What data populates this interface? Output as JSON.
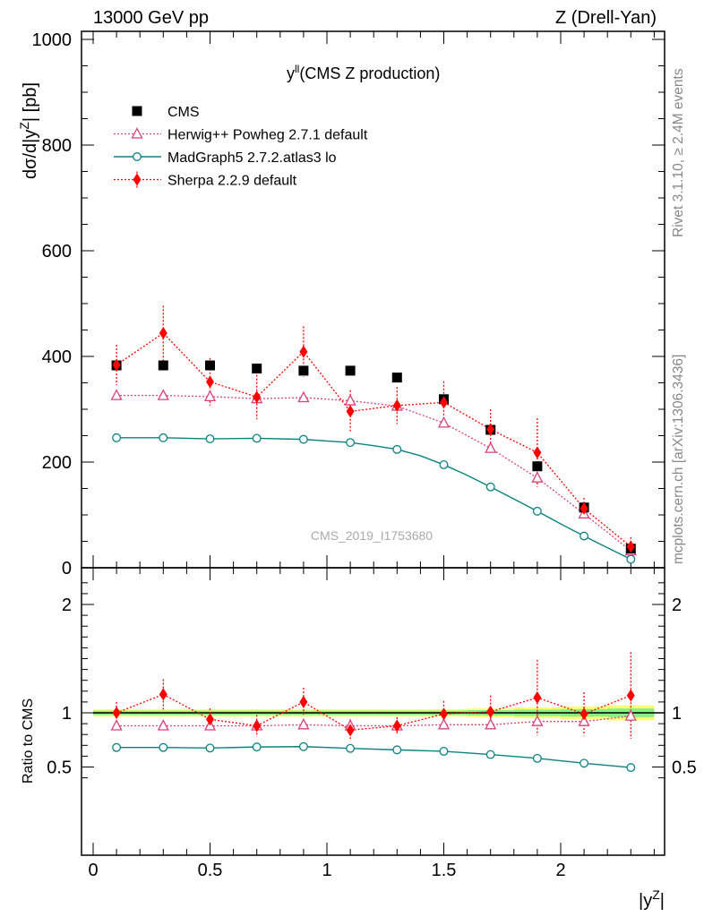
{
  "header": {
    "left": "13000 GeV pp",
    "right": "Z (Drell-Yan)"
  },
  "side_text": {
    "rivet": "Rivet 3.1.10, ≥ 2.4M events",
    "mcplots": "mcplots.cern.ch [arXiv:1306.3436]"
  },
  "chart_data": [
    {
      "type": "scatter",
      "title": "y",
      "title_superscript": "ll",
      "title_suffix": "(CMS Z production)",
      "analysis_label": "CMS_2019_I1753680",
      "xlabel": "|y",
      "xlabel_superscript": "Z",
      "xlabel_suffix": "|",
      "ylabel": "dσ/d|y",
      "ylabel_superscript": "Z",
      "ylabel_suffix": "| [pb]",
      "xlim": [
        -0.05,
        2.45
      ],
      "ylim": [
        0,
        1010
      ],
      "yticks": [
        0,
        200,
        400,
        600,
        800,
        1000
      ],
      "yticklabels": [
        "0",
        "200",
        "400",
        "600",
        "800",
        "1000"
      ],
      "x": [
        0.1,
        0.3,
        0.5,
        0.7,
        0.9,
        1.1,
        1.3,
        1.5,
        1.7,
        1.9,
        2.1,
        2.3
      ],
      "series": [
        {
          "name": "CMS",
          "marker": "square",
          "color": "#000000",
          "values": [
            383,
            383,
            383,
            377,
            373,
            373,
            360,
            319,
            261,
            192,
            114,
            36
          ]
        },
        {
          "name": "Herwig++ Powheg 2.7.1 default",
          "marker": "triangle-open",
          "color": "#d6447a",
          "line": "dotted",
          "values": [
            326,
            326,
            324,
            320,
            322,
            316,
            306,
            274,
            226,
            170,
            102,
            32
          ]
        },
        {
          "name": "MadGraph5 2.7.2.atlas3 lo",
          "marker": "circle-open",
          "color": "#0b8282",
          "line": "solid",
          "values": [
            246,
            246,
            244,
            245,
            243,
            237,
            224,
            195,
            153,
            107,
            60,
            16
          ],
          "dense_line_x": [
            0.1,
            0.3,
            0.5,
            0.7,
            0.9,
            1.0,
            1.1,
            1.2,
            1.3,
            1.4,
            1.5,
            1.6,
            1.7,
            1.8,
            1.9,
            2.0,
            2.1,
            2.2,
            2.3
          ],
          "dense_line_y": [
            246,
            246,
            244,
            245,
            243,
            240,
            237,
            231,
            224,
            212,
            195,
            175,
            153,
            130,
            107,
            83,
            60,
            38,
            16
          ]
        },
        {
          "name": "Sherpa 2.2.9 default",
          "marker": "diamond",
          "color": "#ff0000",
          "line": "dotted",
          "values": [
            384,
            444,
            352,
            323,
            409,
            296,
            307,
            313,
            262,
            218,
            112,
            40
          ],
          "err": [
            38,
            52,
            45,
            42,
            48,
            40,
            35,
            40,
            38,
            65,
            20,
            18
          ]
        }
      ]
    },
    {
      "type": "scatter",
      "ylabel": "Ratio to CMS",
      "xlabel": "|y",
      "xlabel_superscript": "Z",
      "xlabel_suffix": "|",
      "xlim": [
        -0.05,
        2.45
      ],
      "ylim": [
        0.35,
        2.25
      ],
      "xticks": [
        0,
        0.5,
        1,
        1.5,
        2
      ],
      "xticklabels": [
        "0",
        "0.5",
        "1",
        "1.5",
        "2"
      ],
      "yticks": [
        0.5,
        1,
        2
      ],
      "yticklabels": [
        "0.5",
        "1",
        "2"
      ],
      "x": [
        0.1,
        0.3,
        0.5,
        0.7,
        0.9,
        1.1,
        1.3,
        1.5,
        1.7,
        1.9,
        2.1,
        2.3
      ],
      "band_outer": [
        0.035,
        0.035,
        0.035,
        0.035,
        0.035,
        0.035,
        0.035,
        0.035,
        0.04,
        0.05,
        0.06,
        0.07
      ],
      "band_inner": [
        0.02,
        0.02,
        0.02,
        0.02,
        0.02,
        0.02,
        0.02,
        0.02,
        0.025,
        0.03,
        0.035,
        0.04
      ],
      "band_colors": {
        "outer": "#ffff77",
        "inner": "#88ee88"
      },
      "series": [
        {
          "name": "Herwig++ Powheg 2.7.1 default",
          "color": "#d6447a",
          "values": [
            0.88,
            0.88,
            0.88,
            0.88,
            0.89,
            0.88,
            0.88,
            0.89,
            0.89,
            0.92,
            0.92,
            0.97
          ]
        },
        {
          "name": "MadGraph5 2.7.2.atlas3 lo",
          "color": "#0b8282",
          "values": [
            0.68,
            0.68,
            0.675,
            0.685,
            0.688,
            0.672,
            0.658,
            0.645,
            0.615,
            0.58,
            0.535,
            0.495
          ]
        },
        {
          "name": "Sherpa 2.2.9 default",
          "color": "#ff0000",
          "values": [
            1.0,
            1.17,
            0.94,
            0.88,
            1.1,
            0.84,
            0.88,
            0.99,
            1.01,
            1.14,
            0.99,
            1.16
          ],
          "err": [
            0.1,
            0.14,
            0.1,
            0.1,
            0.13,
            0.1,
            0.08,
            0.12,
            0.15,
            0.35,
            0.2,
            0.4
          ]
        }
      ]
    }
  ]
}
